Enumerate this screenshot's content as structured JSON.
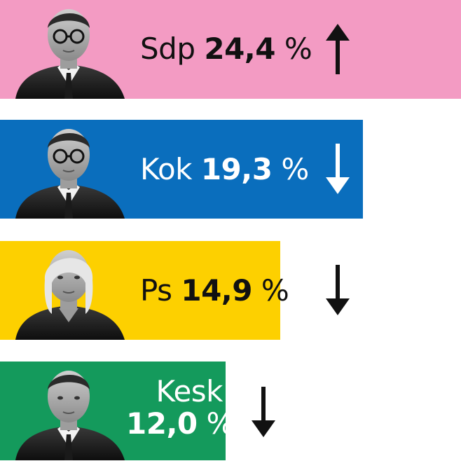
{
  "chart_data": {
    "type": "bar",
    "orientation": "horizontal",
    "categories": [
      "Sdp",
      "Kok",
      "Ps",
      "Kesk"
    ],
    "values": [
      24.4,
      19.3,
      14.9,
      12.0
    ],
    "value_labels": [
      "24,4",
      "19,3",
      "14,9",
      "12,0"
    ],
    "unit": "%",
    "trend": [
      "up",
      "down",
      "down",
      "down"
    ],
    "colors": [
      "#f39bc3",
      "#0a6ebd",
      "#fdd000",
      "#149a5c"
    ],
    "trend_color": "#111111",
    "title": "",
    "xlabel": "",
    "ylabel": "",
    "grid": false,
    "legend": "none"
  }
}
